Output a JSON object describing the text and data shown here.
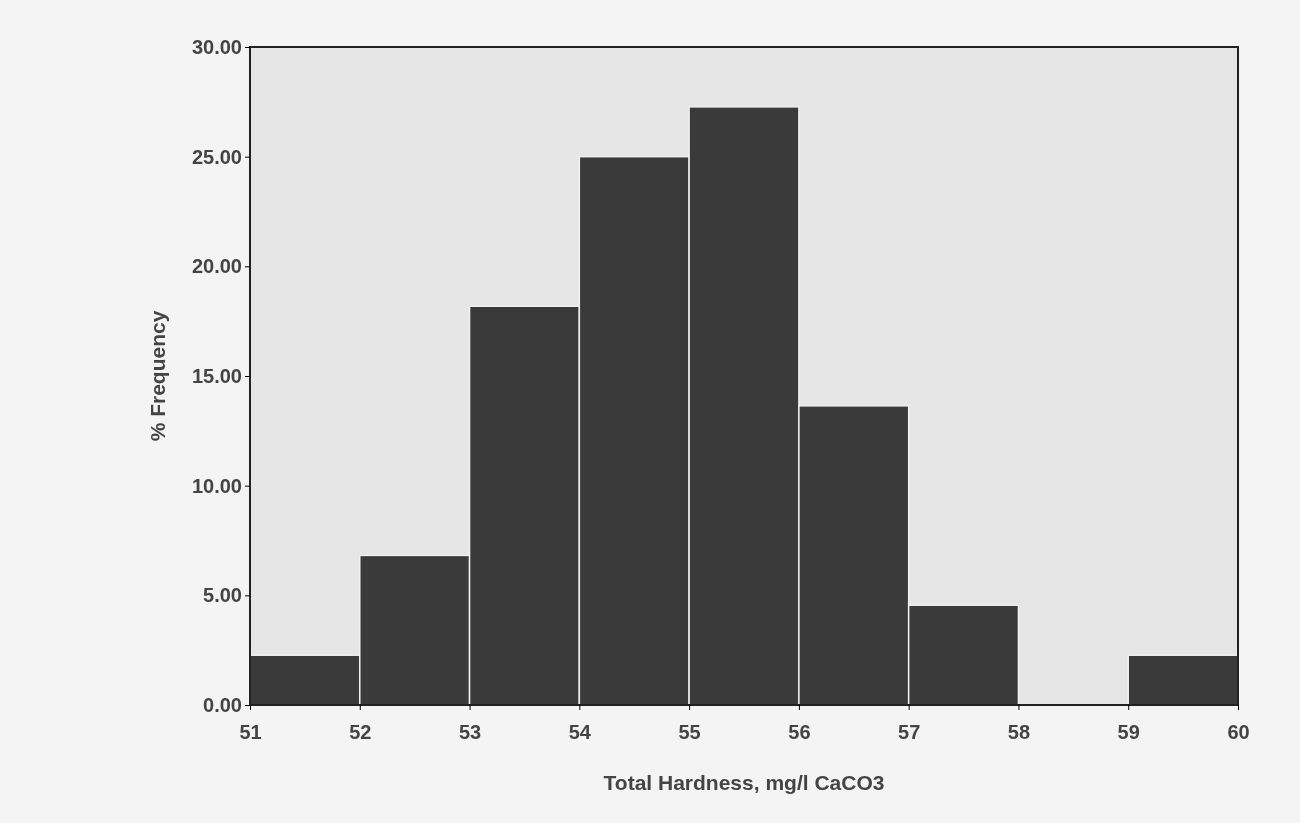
{
  "chart_data": {
    "type": "histogram",
    "xlabel": "Total Hardness, mg/l CaCO3",
    "ylabel": "% Frequency",
    "bins": [
      51,
      52,
      53,
      54,
      55,
      56,
      57,
      58,
      59,
      60
    ],
    "values": [
      2.27,
      6.82,
      18.18,
      25.0,
      27.27,
      13.64,
      4.55,
      0,
      2.27
    ],
    "color": "#3a3a3a",
    "xlim": [
      51,
      60
    ],
    "xticks": [
      51,
      52,
      53,
      54,
      55,
      56,
      57,
      58,
      59,
      60
    ],
    "ylim": [
      0,
      30
    ],
    "yticks": [
      {
        "value": 0,
        "label": "0.00"
      },
      {
        "value": 5,
        "label": "5.00"
      },
      {
        "value": 10,
        "label": "10.00"
      },
      {
        "value": 15,
        "label": "15.00"
      },
      {
        "value": 20,
        "label": "20.00"
      },
      {
        "value": 25,
        "label": "25.00"
      },
      {
        "value": 30,
        "label": "30.00"
      }
    ],
    "grid": false
  }
}
